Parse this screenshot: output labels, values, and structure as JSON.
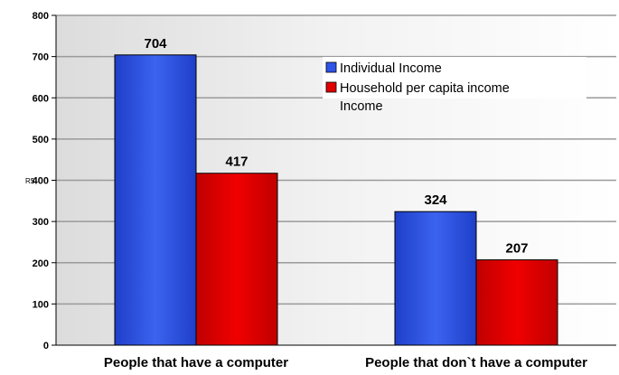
{
  "chart_data": {
    "type": "bar",
    "categories": [
      "People that have a computer",
      "People that  don`t have a computer"
    ],
    "series": [
      {
        "name": "Individual Income",
        "values": [
          704,
          324
        ],
        "color": "#2e55e8"
      },
      {
        "name": "Household per capita income Income",
        "values": [
          417,
          207
        ],
        "color": "#e00000"
      }
    ],
    "legend": [
      "Individual Income",
      "Household per capita income",
      "Income"
    ],
    "ylabel": "R$",
    "xlabel": "",
    "ylim": [
      0,
      800
    ],
    "yticks": [
      0,
      100,
      200,
      300,
      400,
      500,
      600,
      700,
      800
    ],
    "grid": true,
    "legend_position": "top-right"
  }
}
